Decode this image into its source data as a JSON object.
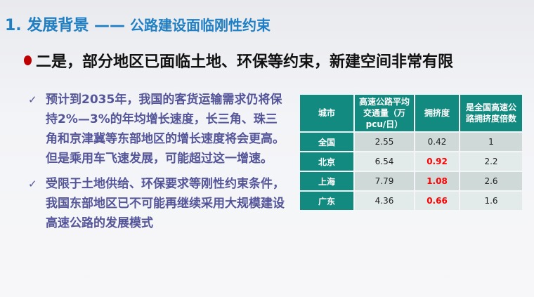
{
  "title": {
    "main": "1. 发展背景 ——",
    "sub": " 公路建设面临刚性约束"
  },
  "headline": "二是，部分地区已面临土地、环保等约束，新建空间非常有限",
  "bullets": [
    {
      "icon": "check-icon",
      "text": "预计到2035年，我国的客货运输需求仍将保持2%—3%的年均增长速度，长三角、珠三角和京津冀等东部地区的增长速度将会更高。但是乘用车飞速发展，可能超过这一增速。"
    },
    {
      "icon": "check-icon",
      "text": "受限于土地供给、环保要求等刚性约束条件，我国东部地区已不可能再继续采用大规模建设高速公路的发展模式"
    }
  ],
  "table": {
    "headers": [
      "城市",
      "高速公路平均交通量（万pcu/日）",
      "拥挤度",
      "是全国高速公路拥挤度倍数"
    ],
    "rows": [
      {
        "city": "全国",
        "volume": "2.55",
        "congestion": "0.42",
        "multiple": "1",
        "highlight": false
      },
      {
        "city": "北京",
        "volume": "6.54",
        "congestion": "0.92",
        "multiple": "2.2",
        "highlight": true
      },
      {
        "city": "上海",
        "volume": "7.79",
        "congestion": "1.08",
        "multiple": "2.6",
        "highlight": true
      },
      {
        "city": "广东",
        "volume": "4.36",
        "congestion": "0.66",
        "multiple": "1.6",
        "highlight": true
      }
    ]
  },
  "colors": {
    "title": "#1f7fc4",
    "table_header": "#138a80",
    "highlight": "#ff0000",
    "bullet_dot": "#c00000"
  }
}
